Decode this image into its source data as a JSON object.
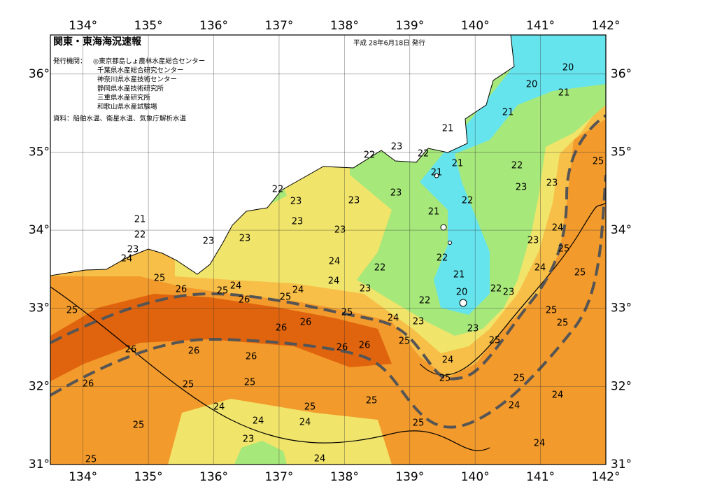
{
  "header": {
    "title": "関東・東海海況速報",
    "issue_date": "平成 28年6月18日 発行"
  },
  "issuer": {
    "label": "発行機関：",
    "organizations": [
      "◎東京都島しょ農林水産総合センター",
      "千葉県水産総合研究センター",
      "神奈川県水産技術センター",
      "静岡県水産技術研究所",
      "三重県水産研究所",
      "和歌山県水産試験場"
    ]
  },
  "source": "資料：船舶水温、衛星水温、気象庁解析水温",
  "map": {
    "lon_range": [
      133.5,
      142
    ],
    "lat_range": [
      31,
      36.5
    ],
    "lon_ticks": [
      {
        "value": 134,
        "label": "134°"
      },
      {
        "value": 135,
        "label": "135°"
      },
      {
        "value": 136,
        "label": "136°"
      },
      {
        "value": 137,
        "label": "137°"
      },
      {
        "value": 138,
        "label": "138°"
      },
      {
        "value": 139,
        "label": "139°"
      },
      {
        "value": 140,
        "label": "140°"
      },
      {
        "value": 141,
        "label": "141°"
      },
      {
        "value": 142,
        "label": "142°"
      }
    ],
    "lat_ticks": [
      {
        "value": 31,
        "label": "31°"
      },
      {
        "value": 32,
        "label": "32°"
      },
      {
        "value": 33,
        "label": "33°"
      },
      {
        "value": 34,
        "label": "34°"
      },
      {
        "value": 35,
        "label": "35°"
      },
      {
        "value": 36,
        "label": "36°"
      }
    ],
    "contour_labels": [
      20,
      20,
      21,
      21,
      21,
      23,
      22,
      22,
      21,
      21,
      22,
      25,
      22,
      23,
      23,
      23,
      23,
      23,
      22,
      21,
      21,
      23,
      24,
      22,
      23,
      23,
      23,
      23,
      25,
      23,
      24,
      22,
      24,
      22,
      24,
      25,
      21,
      25,
      24,
      24,
      26,
      25,
      24,
      22,
      23,
      20,
      23,
      25,
      26,
      22,
      25,
      25,
      25,
      24,
      23,
      26,
      25,
      26,
      23,
      25,
      25,
      26,
      26,
      26,
      26,
      26,
      24,
      25,
      25,
      26,
      25,
      25,
      24,
      25,
      24,
      25,
      24,
      24,
      24,
      25,
      25,
      23,
      24,
      25,
      24
    ]
  }
}
